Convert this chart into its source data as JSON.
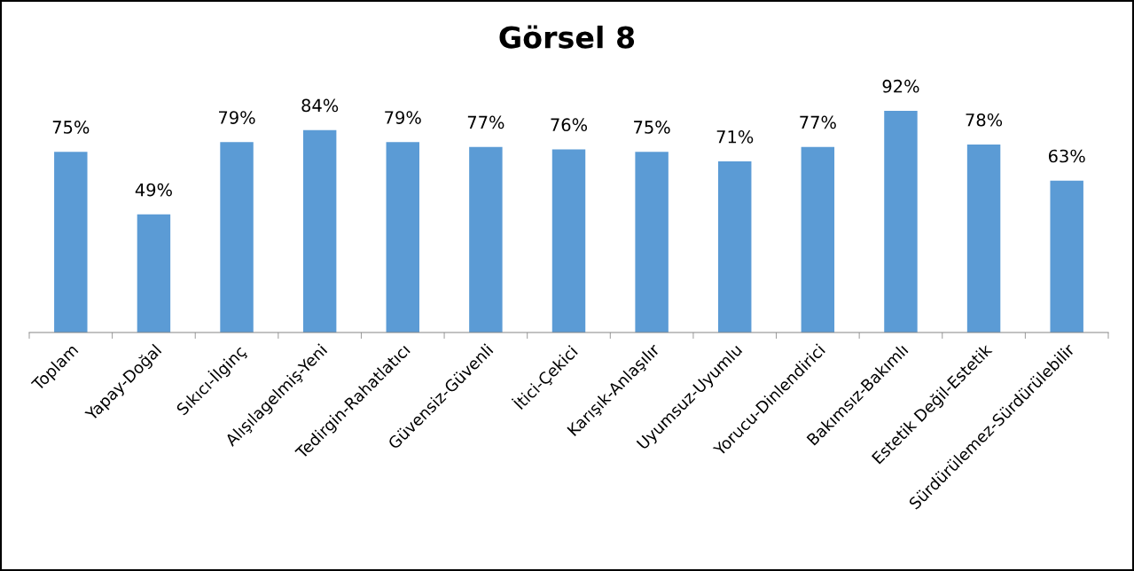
{
  "chart_data": {
    "type": "bar",
    "title": "Görsel 8",
    "categories": [
      "Toplam",
      "Yapay-Doğal",
      "Sıkıcı-İlginç",
      "Alışılagelmiş-Yeni",
      "Tedirgin-Rahatlatıcı",
      "Güvensiz-Güvenli",
      "İtici-Çekici",
      "Karışık-Anlaşılır",
      "Uyumsuz-Uyumlu",
      "Yorucu-Dinlendirici",
      "Bakımsız-Bakımlı",
      "Estetik Değil-Estetik",
      "Sürdürülemez-Sürdürülebilir"
    ],
    "values": [
      75,
      49,
      79,
      84,
      79,
      77,
      76,
      75,
      71,
      77,
      92,
      78,
      63
    ],
    "value_labels": [
      "75%",
      "49%",
      "79%",
      "84%",
      "79%",
      "77%",
      "76%",
      "75%",
      "71%",
      "77%",
      "92%",
      "78%",
      "63%"
    ],
    "color": "#5b9bd5",
    "tick_labels": "x",
    "grid": false
  }
}
